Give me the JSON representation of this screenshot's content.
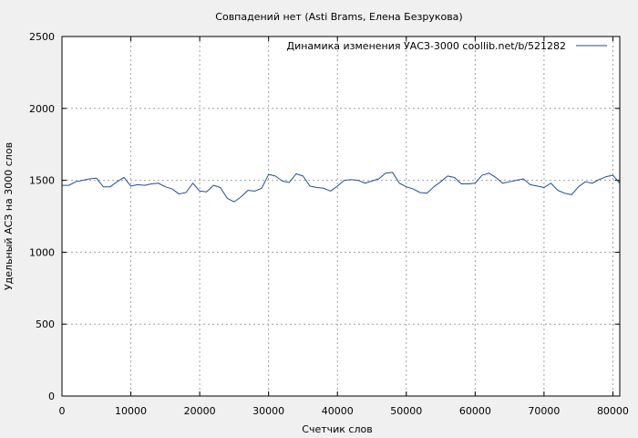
{
  "chart_data": {
    "type": "line",
    "title": "Совпадений нет (Asti Brams, Елена Безрукова)",
    "xlabel": "Счетчик слов",
    "ylabel": "Удельный АСЗ на 3000 слов",
    "xlim": [
      0,
      81000
    ],
    "ylim": [
      0,
      2500
    ],
    "x_ticks": [
      0,
      10000,
      20000,
      30000,
      40000,
      50000,
      60000,
      70000,
      80000
    ],
    "y_ticks": [
      0,
      500,
      1000,
      1500,
      2000,
      2500
    ],
    "grid": true,
    "legend_position": "top-right",
    "series": [
      {
        "name": "Динамика изменения УАСЗ-3000  coollib.net/b/521282",
        "color": "#1f4e9c",
        "points": [
          [
            0,
            1465
          ],
          [
            1000,
            1465
          ],
          [
            2000,
            1490
          ],
          [
            3000,
            1500
          ],
          [
            4000,
            1510
          ],
          [
            5000,
            1515
          ],
          [
            6000,
            1455
          ],
          [
            7000,
            1455
          ],
          [
            8000,
            1490
          ],
          [
            9000,
            1520
          ],
          [
            10000,
            1460
          ],
          [
            11000,
            1470
          ],
          [
            12000,
            1465
          ],
          [
            13000,
            1475
          ],
          [
            14000,
            1480
          ],
          [
            15000,
            1455
          ],
          [
            16000,
            1440
          ],
          [
            17000,
            1405
          ],
          [
            18000,
            1415
          ],
          [
            19000,
            1480
          ],
          [
            20000,
            1425
          ],
          [
            21000,
            1420
          ],
          [
            22000,
            1465
          ],
          [
            23000,
            1450
          ],
          [
            24000,
            1375
          ],
          [
            25000,
            1350
          ],
          [
            26000,
            1385
          ],
          [
            27000,
            1430
          ],
          [
            28000,
            1425
          ],
          [
            29000,
            1445
          ],
          [
            30000,
            1540
          ],
          [
            31000,
            1530
          ],
          [
            32000,
            1495
          ],
          [
            33000,
            1485
          ],
          [
            34000,
            1545
          ],
          [
            35000,
            1530
          ],
          [
            36000,
            1460
          ],
          [
            37000,
            1450
          ],
          [
            38000,
            1445
          ],
          [
            39000,
            1425
          ],
          [
            40000,
            1460
          ],
          [
            41000,
            1500
          ],
          [
            42000,
            1505
          ],
          [
            43000,
            1500
          ],
          [
            44000,
            1480
          ],
          [
            45000,
            1495
          ],
          [
            46000,
            1510
          ],
          [
            47000,
            1550
          ],
          [
            48000,
            1555
          ],
          [
            49000,
            1480
          ],
          [
            50000,
            1455
          ],
          [
            51000,
            1440
          ],
          [
            52000,
            1415
          ],
          [
            53000,
            1410
          ],
          [
            54000,
            1455
          ],
          [
            55000,
            1490
          ],
          [
            56000,
            1530
          ],
          [
            57000,
            1520
          ],
          [
            58000,
            1475
          ],
          [
            59000,
            1475
          ],
          [
            60000,
            1480
          ],
          [
            61000,
            1535
          ],
          [
            62000,
            1550
          ],
          [
            63000,
            1520
          ],
          [
            64000,
            1480
          ],
          [
            65000,
            1490
          ],
          [
            66000,
            1500
          ],
          [
            67000,
            1510
          ],
          [
            68000,
            1470
          ],
          [
            69000,
            1460
          ],
          [
            70000,
            1450
          ],
          [
            71000,
            1480
          ],
          [
            72000,
            1430
          ],
          [
            73000,
            1410
          ],
          [
            74000,
            1400
          ],
          [
            75000,
            1455
          ],
          [
            76000,
            1490
          ],
          [
            77000,
            1480
          ],
          [
            78000,
            1505
          ],
          [
            79000,
            1525
          ],
          [
            80000,
            1535
          ],
          [
            81000,
            1480
          ]
        ]
      }
    ]
  }
}
